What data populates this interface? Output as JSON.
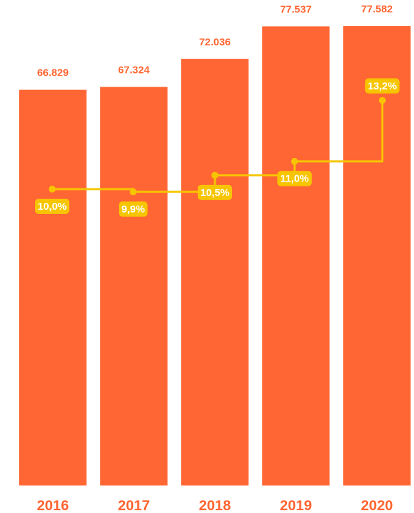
{
  "colors": {
    "bar": "#ff6633",
    "line": "#f7c500",
    "badge": "#f7c500",
    "badge_text": "#ffffff",
    "label": "#ff6633"
  },
  "chart_data": {
    "type": "bar",
    "categories": [
      "2016",
      "2017",
      "2018",
      "2019",
      "2020"
    ],
    "series": [
      {
        "type": "bar",
        "values": [
          66829,
          67324,
          72036,
          77537,
          77582
        ],
        "labels": [
          "66.829",
          "67.324",
          "72.036",
          "77.537",
          "77.582"
        ]
      },
      {
        "type": "step-line",
        "values": [
          10.0,
          9.9,
          10.5,
          11.0,
          13.2
        ],
        "labels": [
          "10,0%",
          "9,9%",
          "10,5%",
          "11,0%",
          "13,2%"
        ]
      }
    ],
    "title": "",
    "xlabel": "",
    "ylabel": "",
    "ylim": [
      0,
      80000
    ],
    "grid": false,
    "legend": "none"
  }
}
